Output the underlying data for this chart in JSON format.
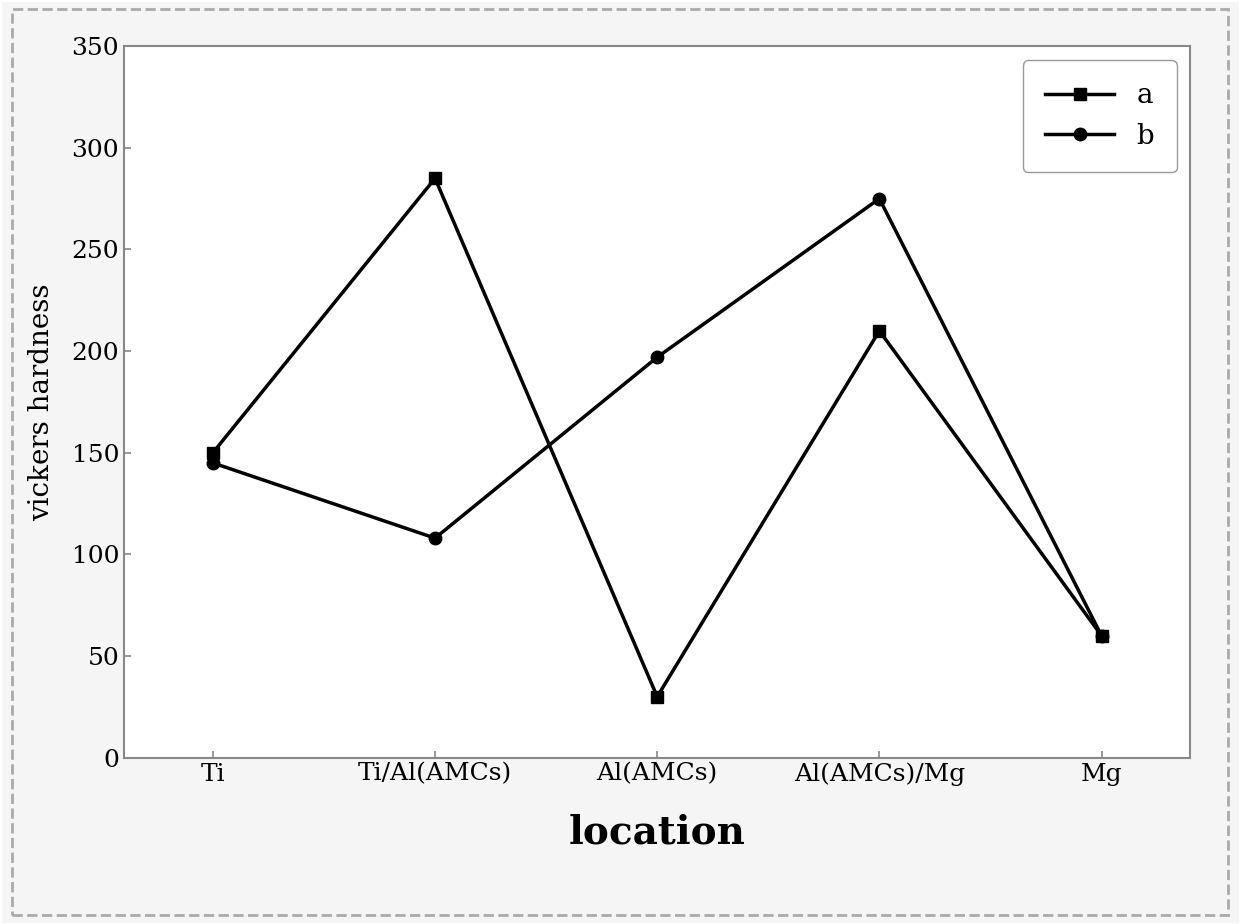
{
  "categories": [
    "Ti",
    "Ti/Al(AMCs)",
    "Al(AMCs)",
    "Al(AMCs)/Mg",
    "Mg"
  ],
  "series_a": [
    150,
    285,
    30,
    210,
    60
  ],
  "series_b": [
    145,
    108,
    197,
    275,
    60
  ],
  "series_a_label": "a",
  "series_b_label": "b",
  "ylabel": "vickers hardness",
  "xlabel": "location",
  "ylim": [
    0,
    350
  ],
  "yticks": [
    0,
    50,
    100,
    150,
    200,
    250,
    300,
    350
  ],
  "line_color": "#000000",
  "marker_a": "s",
  "marker_b": "o",
  "marker_size": 9,
  "linewidth": 2.5,
  "ylabel_fontsize": 20,
  "xlabel_fontsize": 28,
  "tick_fontsize": 18,
  "legend_fontsize": 20,
  "background_color": "#f5f5f5",
  "plot_bg_color": "#ffffff",
  "border_color": "#888888",
  "outer_border_color": "#aaaaaa",
  "outer_border_dashed": true
}
